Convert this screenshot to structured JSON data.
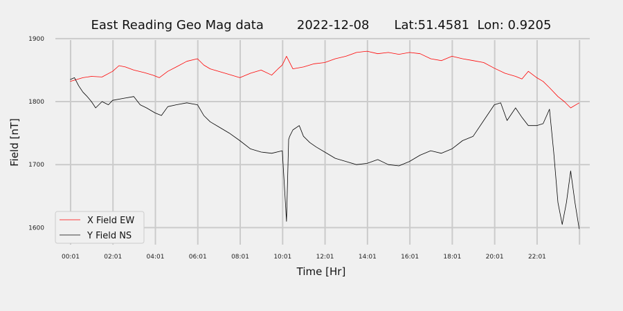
{
  "chart_data": {
    "type": "line",
    "title": "East Reading Geo Mag data",
    "date": "2022-12-08",
    "location": "Lat:51.4581  Lon: 0.9205",
    "xlabel": "Time  [Hr]",
    "ylabel": "Field  [nT]",
    "xlim": [
      -0.7,
      24.5
    ],
    "ylim": [
      1573,
      1902
    ],
    "x_ticks": [
      {
        "value": 0.0167,
        "label": "00:01"
      },
      {
        "value": 2.0167,
        "label": "02:01"
      },
      {
        "value": 4.0167,
        "label": "04:01"
      },
      {
        "value": 6.0167,
        "label": "06:01"
      },
      {
        "value": 8.0167,
        "label": "08:01"
      },
      {
        "value": 10.0167,
        "label": "10:01"
      },
      {
        "value": 12.0167,
        "label": "12:01"
      },
      {
        "value": 14.0167,
        "label": "14:01"
      },
      {
        "value": 16.0167,
        "label": "16:01"
      },
      {
        "value": 18.0167,
        "label": "18:01"
      },
      {
        "value": 20.0167,
        "label": "20:01"
      },
      {
        "value": 22.0167,
        "label": "22:01"
      }
    ],
    "x_gridlines": [
      0.0167,
      2.0167,
      4.0167,
      6.0167,
      8.0167,
      10.0167,
      12.0167,
      14.0167,
      16.0167,
      18.0167,
      20.0167,
      22.0167,
      24.0167
    ],
    "y_ticks": [
      1600,
      1700,
      1800,
      1900
    ],
    "grid": true,
    "legend_position": "lower-left",
    "series": [
      {
        "name": "X Field EW",
        "color": "#ff0000",
        "x": [
          0.0,
          0.3,
          0.6,
          1.0,
          1.5,
          2.0,
          2.3,
          2.6,
          3.0,
          3.5,
          3.9,
          4.2,
          4.6,
          5.0,
          5.5,
          6.0,
          6.3,
          6.6,
          7.0,
          7.5,
          8.0,
          8.5,
          9.0,
          9.5,
          9.8,
          10.0,
          10.2,
          10.5,
          11.0,
          11.5,
          12.0,
          12.5,
          13.0,
          13.5,
          14.0,
          14.5,
          15.0,
          15.5,
          16.0,
          16.5,
          17.0,
          17.5,
          18.0,
          18.5,
          19.0,
          19.5,
          20.0,
          20.5,
          21.0,
          21.3,
          21.6,
          22.0,
          22.3,
          22.6,
          23.0,
          23.3,
          23.6,
          24.0
        ],
        "y": [
          1832,
          1835,
          1838,
          1840,
          1839,
          1848,
          1857,
          1855,
          1850,
          1846,
          1842,
          1838,
          1848,
          1855,
          1864,
          1868,
          1858,
          1852,
          1848,
          1843,
          1838,
          1845,
          1850,
          1842,
          1852,
          1858,
          1872,
          1852,
          1855,
          1860,
          1862,
          1868,
          1872,
          1878,
          1880,
          1876,
          1878,
          1875,
          1878,
          1876,
          1868,
          1865,
          1872,
          1868,
          1865,
          1862,
          1853,
          1845,
          1840,
          1836,
          1848,
          1838,
          1832,
          1822,
          1808,
          1800,
          1790,
          1798
        ]
      },
      {
        "name": "Y Field NS",
        "color": "#000000",
        "x": [
          0.0,
          0.2,
          0.4,
          0.6,
          0.8,
          1.0,
          1.2,
          1.5,
          1.8,
          2.0,
          2.5,
          3.0,
          3.3,
          3.6,
          4.0,
          4.3,
          4.6,
          5.0,
          5.5,
          6.0,
          6.3,
          6.6,
          7.0,
          7.5,
          8.0,
          8.5,
          9.0,
          9.5,
          10.0,
          10.2,
          10.3,
          10.35,
          10.5,
          10.8,
          11.0,
          11.3,
          11.6,
          12.0,
          12.5,
          13.0,
          13.5,
          14.0,
          14.5,
          15.0,
          15.5,
          16.0,
          16.5,
          17.0,
          17.5,
          18.0,
          18.5,
          19.0,
          19.5,
          20.0,
          20.3,
          20.6,
          21.0,
          21.3,
          21.6,
          22.0,
          22.3,
          22.6,
          22.8,
          23.0,
          23.2,
          23.4,
          23.6,
          23.8,
          24.0
        ],
        "y": [
          1835,
          1838,
          1825,
          1815,
          1808,
          1800,
          1790,
          1800,
          1795,
          1802,
          1805,
          1808,
          1795,
          1790,
          1782,
          1778,
          1792,
          1795,
          1798,
          1795,
          1778,
          1768,
          1760,
          1750,
          1738,
          1725,
          1720,
          1718,
          1722,
          1610,
          1740,
          1745,
          1755,
          1762,
          1745,
          1735,
          1728,
          1720,
          1710,
          1705,
          1700,
          1702,
          1708,
          1700,
          1698,
          1705,
          1715,
          1722,
          1718,
          1725,
          1738,
          1745,
          1770,
          1795,
          1798,
          1770,
          1790,
          1775,
          1762,
          1762,
          1765,
          1788,
          1720,
          1640,
          1605,
          1640,
          1690,
          1640,
          1598
        ]
      }
    ]
  }
}
